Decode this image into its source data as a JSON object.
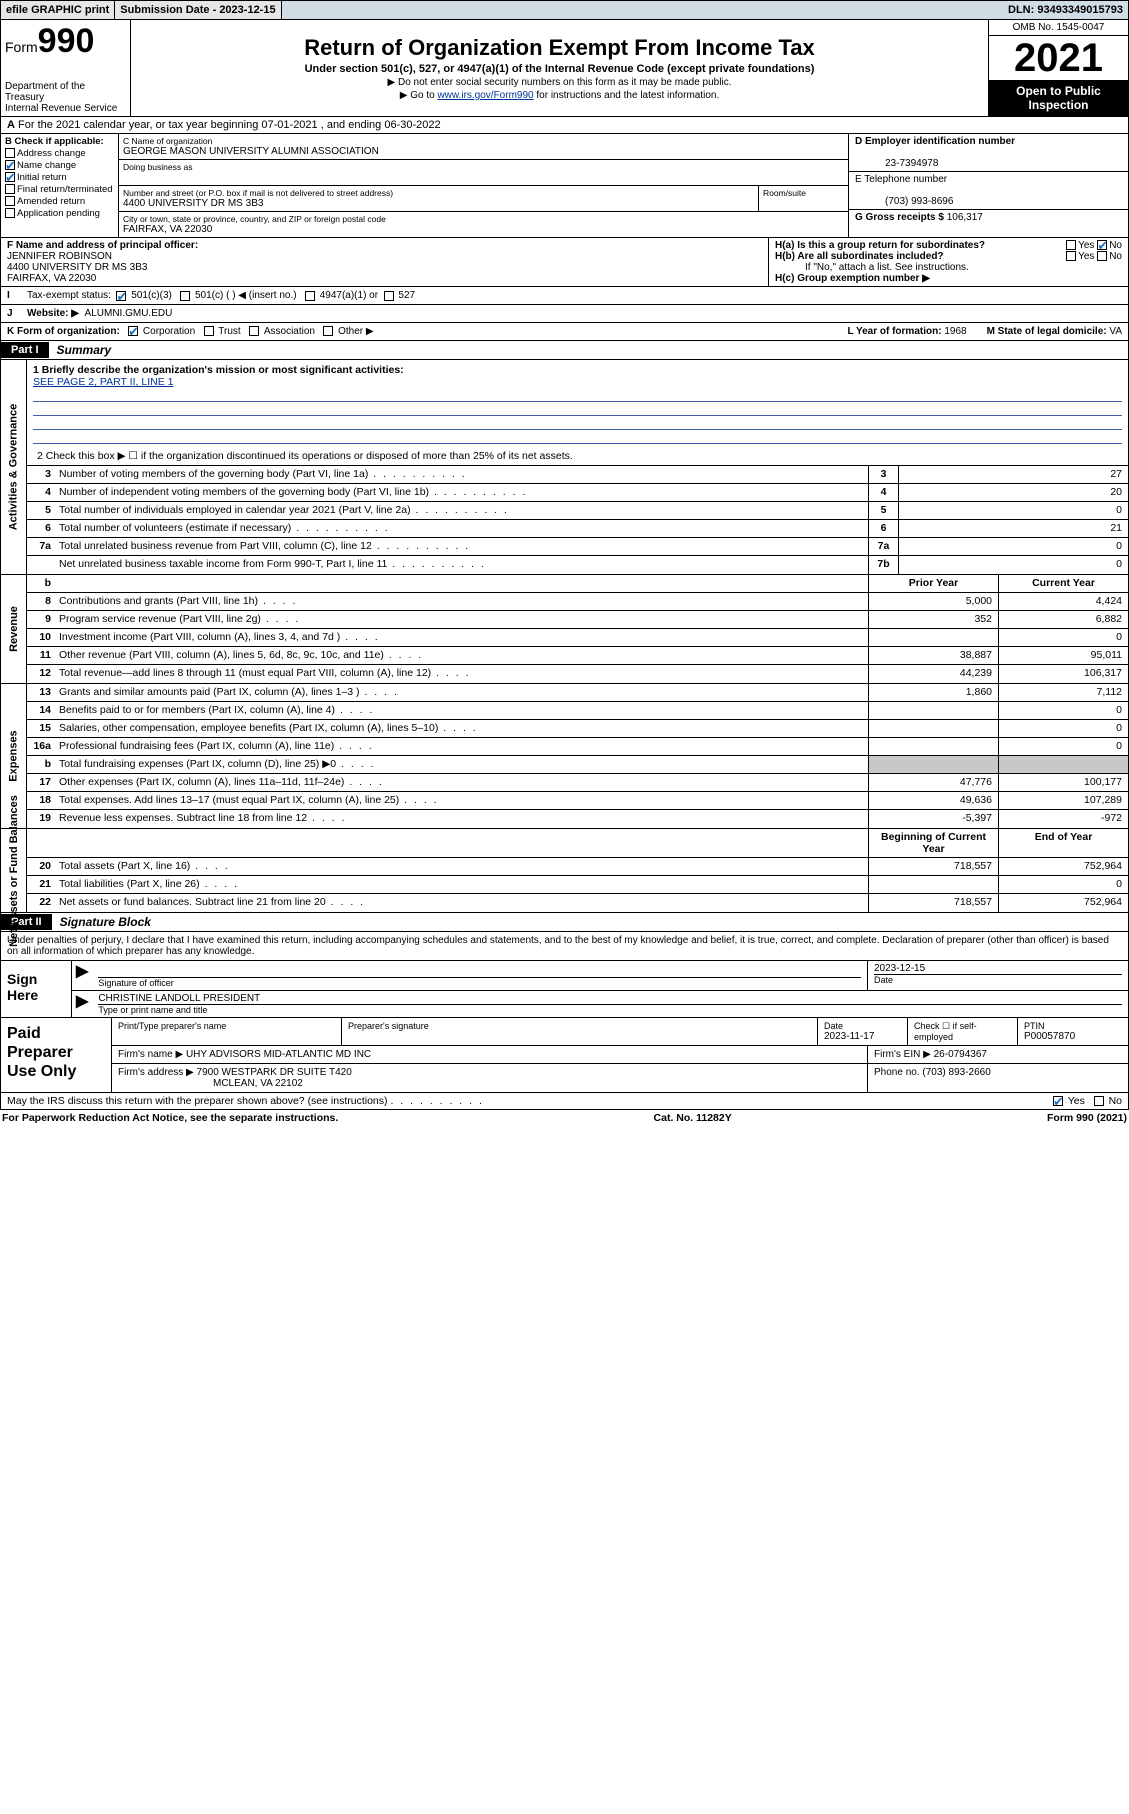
{
  "topbar": {
    "efile_label": "efile GRAPHIC print",
    "sub_label": "Submission Date - 2023-12-15",
    "dln_label": "DLN: 93493349015793"
  },
  "header": {
    "form_label": "Form",
    "form_number": "990",
    "dept": "Department of the Treasury",
    "irs": "Internal Revenue Service",
    "title": "Return of Organization Exempt From Income Tax",
    "subtitle": "Under section 501(c), 527, or 4947(a)(1) of the Internal Revenue Code (except private foundations)",
    "note1": "▶ Do not enter social security numbers on this form as it may be made public.",
    "note2_pre": "▶ Go to ",
    "note2_link": "www.irs.gov/Form990",
    "note2_post": " for instructions and the latest information.",
    "omb": "OMB No. 1545-0047",
    "year": "2021",
    "inspection": "Open to Public Inspection"
  },
  "A": {
    "text": "For the 2021 calendar year, or tax year beginning 07-01-2021   , and ending 06-30-2022"
  },
  "B": {
    "label": "B Check if applicable:",
    "opts": [
      "Address change",
      "Name change",
      "Initial return",
      "Final return/terminated",
      "Amended return",
      "Application pending"
    ],
    "checked": [
      false,
      true,
      true,
      false,
      false,
      false
    ]
  },
  "C": {
    "name_lbl": "C Name of organization",
    "name": "GEORGE MASON UNIVERSITY ALUMNI ASSOCIATION",
    "dba_lbl": "Doing business as",
    "addr_lbl": "Number and street (or P.O. box if mail is not delivered to street address)",
    "room_lbl": "Room/suite",
    "addr": "4400 UNIVERSITY DR MS 3B3",
    "city_lbl": "City or town, state or province, country, and ZIP or foreign postal code",
    "city": "FAIRFAX, VA  22030"
  },
  "D": {
    "lbl": "D Employer identification number",
    "val": "23-7394978"
  },
  "E": {
    "lbl": "E Telephone number",
    "val": "(703) 993-8696"
  },
  "G": {
    "lbl": "G Gross receipts $",
    "val": "106,317"
  },
  "F": {
    "lbl": "F  Name and address of principal officer:",
    "name": "JENNIFER ROBINSON",
    "addr1": "4400 UNIVERSITY DR MS 3B3",
    "addr2": "FAIRFAX, VA  22030"
  },
  "H": {
    "a": "H(a)  Is this a group return for subordinates?",
    "b": "H(b)  Are all subordinates included?",
    "b_note": "If \"No,\" attach a list. See instructions.",
    "c": "H(c)  Group exemption number ▶",
    "yes": "Yes",
    "no": "No"
  },
  "I": {
    "lbl": "Tax-exempt status:",
    "opts": [
      "501(c)(3)",
      "501(c) (  ) ◀ (insert no.)",
      "4947(a)(1) or",
      "527"
    ]
  },
  "J": {
    "lbl": "Website: ▶",
    "val": "ALUMNI.GMU.EDU"
  },
  "K": {
    "lbl": "K Form of organization:",
    "opts": [
      "Corporation",
      "Trust",
      "Association",
      "Other ▶"
    ]
  },
  "L": {
    "lbl": "L Year of formation:",
    "val": "1968"
  },
  "M": {
    "lbl": "M State of legal domicile:",
    "val": "VA"
  },
  "parts": {
    "p1": "Part I",
    "p1_title": "Summary",
    "p2": "Part II",
    "p2_title": "Signature Block"
  },
  "summary": {
    "side_labels": [
      "Activities & Governance",
      "Revenue",
      "Expenses",
      "Net Assets or Fund Balances"
    ],
    "mission_lbl": "1   Briefly describe the organization's mission or most significant activities:",
    "mission_link": "SEE PAGE 2, PART II, LINE 1",
    "line2": "2   Check this box ▶ ☐  if the organization discontinued its operations or disposed of more than 25% of its net assets.",
    "rows_top": [
      {
        "n": "3",
        "t": "Number of voting members of the governing body (Part VI, line 1a)",
        "cn": "3",
        "cv": "27"
      },
      {
        "n": "4",
        "t": "Number of independent voting members of the governing body (Part VI, line 1b)",
        "cn": "4",
        "cv": "20"
      },
      {
        "n": "5",
        "t": "Total number of individuals employed in calendar year 2021 (Part V, line 2a)",
        "cn": "5",
        "cv": "0"
      },
      {
        "n": "6",
        "t": "Total number of volunteers (estimate if necessary)",
        "cn": "6",
        "cv": "21"
      },
      {
        "n": "7a",
        "t": "Total unrelated business revenue from Part VIII, column (C), line 12",
        "cn": "7a",
        "cv": "0"
      },
      {
        "n": "",
        "t": "Net unrelated business taxable income from Form 990-T, Part I, line 11",
        "cn": "7b",
        "cv": "0"
      }
    ],
    "head_b": "b",
    "col_prior": "Prior Year",
    "col_current": "Current Year",
    "col_begin": "Beginning of Current Year",
    "col_end": "End of Year",
    "rows_mid": [
      {
        "n": "8",
        "t": "Contributions and grants (Part VIII, line 1h)",
        "c1": "5,000",
        "c2": "4,424"
      },
      {
        "n": "9",
        "t": "Program service revenue (Part VIII, line 2g)",
        "c1": "352",
        "c2": "6,882"
      },
      {
        "n": "10",
        "t": "Investment income (Part VIII, column (A), lines 3, 4, and 7d )",
        "c1": "",
        "c2": "0"
      },
      {
        "n": "11",
        "t": "Other revenue (Part VIII, column (A), lines 5, 6d, 8c, 9c, 10c, and 11e)",
        "c1": "38,887",
        "c2": "95,011"
      },
      {
        "n": "12",
        "t": "Total revenue—add lines 8 through 11 (must equal Part VIII, column (A), line 12)",
        "c1": "44,239",
        "c2": "106,317"
      },
      {
        "n": "13",
        "t": "Grants and similar amounts paid (Part IX, column (A), lines 1–3 )",
        "c1": "1,860",
        "c2": "7,112"
      },
      {
        "n": "14",
        "t": "Benefits paid to or for members (Part IX, column (A), line 4)",
        "c1": "",
        "c2": "0"
      },
      {
        "n": "15",
        "t": "Salaries, other compensation, employee benefits (Part IX, column (A), lines 5–10)",
        "c1": "",
        "c2": "0"
      },
      {
        "n": "16a",
        "t": "Professional fundraising fees (Part IX, column (A), line 11e)",
        "c1": "",
        "c2": "0"
      },
      {
        "n": "b",
        "t": "Total fundraising expenses (Part IX, column (D), line 25) ▶0",
        "c1": "shade",
        "c2": "shade"
      },
      {
        "n": "17",
        "t": "Other expenses (Part IX, column (A), lines 11a–11d, 11f–24e)",
        "c1": "47,776",
        "c2": "100,177"
      },
      {
        "n": "18",
        "t": "Total expenses. Add lines 13–17 (must equal Part IX, column (A), line 25)",
        "c1": "49,636",
        "c2": "107,289"
      },
      {
        "n": "19",
        "t": "Revenue less expenses. Subtract line 18 from line 12",
        "c1": "-5,397",
        "c2": "-972"
      }
    ],
    "rows_bot": [
      {
        "n": "20",
        "t": "Total assets (Part X, line 16)",
        "c1": "718,557",
        "c2": "752,964"
      },
      {
        "n": "21",
        "t": "Total liabilities (Part X, line 26)",
        "c1": "",
        "c2": "0"
      },
      {
        "n": "22",
        "t": "Net assets or fund balances. Subtract line 21 from line 20",
        "c1": "718,557",
        "c2": "752,964"
      }
    ]
  },
  "sig": {
    "penalty": "Under penalties of perjury, I declare that I have examined this return, including accompanying schedules and statements, and to the best of my knowledge and belief, it is true, correct, and complete. Declaration of preparer (other than officer) is based on all information of which preparer has any knowledge.",
    "sign_here": "Sign Here",
    "sig_officer": "Signature of officer",
    "date_lbl": "Date",
    "date_val": "2023-12-15",
    "officer_name": "CHRISTINE LANDOLL  PRESIDENT",
    "type_name": "Type or print name and title"
  },
  "paid": {
    "lbl": "Paid Preparer Use Only",
    "h1": "Print/Type preparer's name",
    "h2": "Preparer's signature",
    "h3": "Date",
    "h3v": "2023-11-17",
    "h4": "Check ☐ if self-employed",
    "h5": "PTIN",
    "h5v": "P00057870",
    "firm_lbl": "Firm's name    ▶",
    "firm": "UHY ADVISORS MID-ATLANTIC MD INC",
    "ein_lbl": "Firm's EIN ▶",
    "ein": "26-0794367",
    "addr_lbl": "Firm's address ▶",
    "addr1": "7900 WESTPARK DR SUITE T420",
    "addr2": "MCLEAN, VA  22102",
    "phone_lbl": "Phone no.",
    "phone": "(703) 893-2660"
  },
  "last": {
    "q": "May the IRS discuss this return with the preparer shown above? (see instructions)",
    "yes": "Yes",
    "no": "No"
  },
  "footer": {
    "left": "For Paperwork Reduction Act Notice, see the separate instructions.",
    "mid": "Cat. No. 11282Y",
    "right_pre": "Form ",
    "right_b": "990",
    "right_post": " (2021)"
  }
}
